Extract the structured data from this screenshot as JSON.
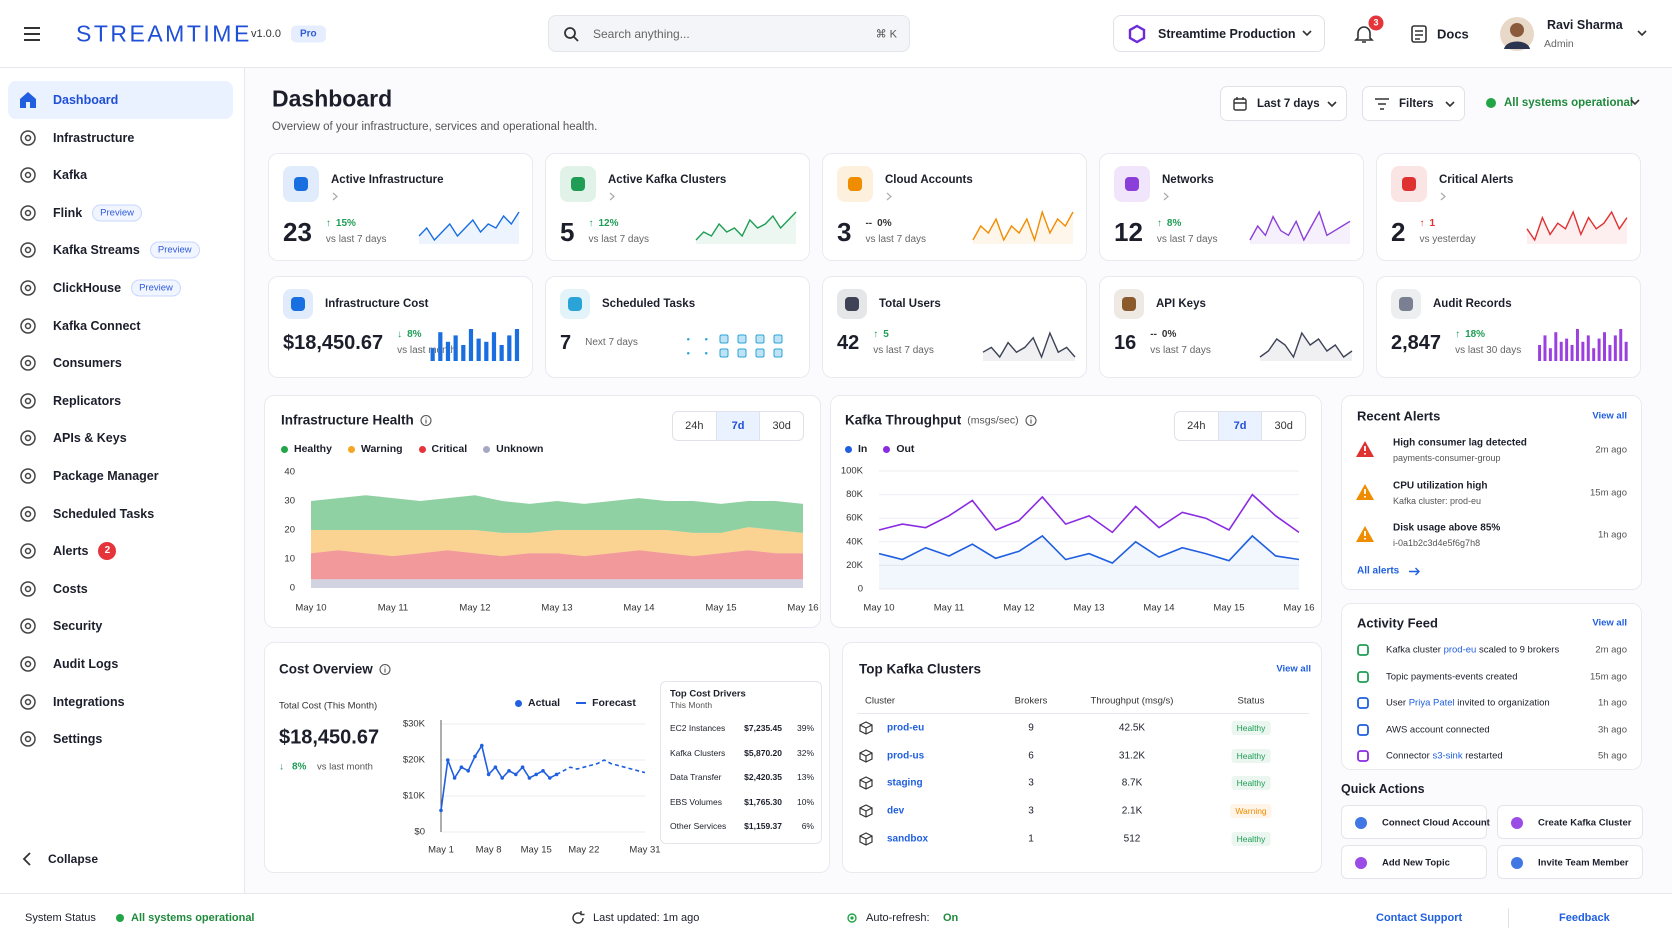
{
  "header": {
    "brand": "STREAMTIME",
    "version": "v1.0.0",
    "plan": "Pro",
    "search_placeholder": "Search anything...",
    "search_shortcut": "⌘ K",
    "organization": "Streamtime Production",
    "notifications": "3",
    "docs": "Docs",
    "user": {
      "name": "Ravi Sharma",
      "role": "Admin"
    }
  },
  "sidebar": {
    "items": [
      {
        "label": "Dashboard",
        "active": true
      },
      {
        "label": "Infrastructure"
      },
      {
        "label": "Kafka"
      },
      {
        "label": "Flink",
        "badge": "Preview"
      },
      {
        "label": "Kafka Streams",
        "badge": "Preview"
      },
      {
        "label": "ClickHouse",
        "badge": "Preview"
      },
      {
        "label": "Kafka Connect"
      },
      {
        "label": "Consumers"
      },
      {
        "label": "Replicators"
      },
      {
        "label": "APIs & Keys"
      },
      {
        "label": "Package Manager"
      },
      {
        "label": "Scheduled Tasks"
      },
      {
        "label": "Alerts",
        "count": "2"
      },
      {
        "label": "Costs"
      },
      {
        "label": "Security"
      },
      {
        "label": "Audit Logs"
      },
      {
        "label": "Integrations"
      },
      {
        "label": "Settings"
      }
    ],
    "collapse": "Collapse"
  },
  "page": {
    "title": "Dashboard",
    "subtitle": "Overview of your infrastructure, services and operational health.",
    "range": "Last 7 days",
    "filters": "Filters",
    "status": "All systems operational"
  },
  "kpis": [
    {
      "title": "Active Infrastructure",
      "value": "23",
      "arrow": "↑",
      "change": "15%",
      "period": "vs last 7 days",
      "color": "#1a6fe0",
      "trend_color": "#1f9d55",
      "spark_type": "line",
      "spark_color": "#1a6fe0",
      "spark": [
        4,
        6,
        3,
        5,
        7,
        4,
        6,
        8,
        5,
        7,
        6,
        9,
        7,
        10
      ]
    },
    {
      "title": "Active Kafka Clusters",
      "value": "5",
      "arrow": "↑",
      "change": "12%",
      "period": "vs last 7 days",
      "color": "#1f9d55",
      "trend_color": "#1f9d55",
      "spark_type": "line",
      "spark_color": "#1f9d55",
      "spark": [
        3,
        5,
        4,
        7,
        5,
        6,
        4,
        8,
        6,
        7,
        9,
        6,
        8,
        10
      ]
    },
    {
      "title": "Cloud Accounts",
      "value": "3",
      "arrow": "--",
      "change": "0%",
      "period": "vs last 7 days",
      "color": "#f08c00",
      "trend_color": "#333333",
      "spark_type": "line",
      "spark_color": "#f08c00",
      "spark": [
        5,
        7,
        6,
        8,
        5,
        7,
        6,
        8,
        5,
        9,
        6,
        8,
        7,
        9
      ]
    },
    {
      "title": "Networks",
      "value": "12",
      "arrow": "↑",
      "change": "8%",
      "period": "vs last 7 days",
      "color": "#8b3fd9",
      "trend_color": "#1f9d55",
      "spark_type": "line",
      "spark_color": "#8b3fd9",
      "spark": [
        4,
        7,
        5,
        9,
        6,
        5,
        8,
        4,
        7,
        10,
        5,
        6,
        7,
        8
      ]
    },
    {
      "title": "Critical Alerts",
      "value": "2",
      "arrow": "↑",
      "change": "1",
      "period": "vs yesterday",
      "color": "#e03131",
      "trend_color": "#e03131",
      "spark_type": "line",
      "spark_color": "#e03131",
      "spark": [
        6,
        4,
        8,
        5,
        7,
        6,
        9,
        5,
        8,
        6,
        7,
        9,
        6,
        8
      ]
    },
    {
      "title": "Infrastructure Cost",
      "value": "$18,450.67",
      "arrow": "↓",
      "change": "8%",
      "period": "vs last month",
      "color": "#1a6fe0",
      "trend_color": "#1f9d55",
      "spark_type": "bar",
      "spark_color": "#1a6fe0",
      "spark": [
        4,
        9,
        6,
        8,
        5,
        10,
        7,
        6,
        9,
        5,
        8,
        10
      ]
    },
    {
      "title": "Scheduled Tasks",
      "value": "7",
      "period": "Next 7 days",
      "color": "#2aa4d8"
    },
    {
      "title": "Total Users",
      "value": "42",
      "arrow": "↑",
      "change": "5",
      "period": "vs last 7 days",
      "color": "#3d4256",
      "trend_color": "#1f9d55",
      "spark_type": "line",
      "spark_color": "#3d4256",
      "spark": [
        5,
        6,
        4,
        7,
        5,
        6,
        8,
        4,
        9,
        5,
        6,
        4
      ]
    },
    {
      "title": "API Keys",
      "value": "16",
      "arrow": "--",
      "change": "0%",
      "period": "vs last 7 days",
      "color": "#8a5a2b",
      "trend_color": "#333333",
      "spark_type": "line",
      "spark_color": "#3d4256",
      "spark": [
        4,
        5,
        7,
        6,
        4,
        8,
        6,
        7,
        5,
        6,
        4,
        5
      ]
    },
    {
      "title": "Audit Records",
      "value": "2,847",
      "arrow": "↑",
      "change": "18%",
      "period": "vs last 30 days",
      "color": "#7a7f92",
      "trend_color": "#1f9d55",
      "spark_type": "bar",
      "spark_color": "#9b3fe0",
      "spark": [
        5,
        8,
        4,
        9,
        6,
        7,
        5,
        10,
        6,
        8,
        4,
        7,
        9,
        5,
        8,
        10,
        6
      ]
    }
  ],
  "chart_data": [
    {
      "type": "area",
      "stacked": true,
      "title": "Infrastructure Health",
      "tabs": [
        "24h",
        "7d",
        "30d"
      ],
      "active_tab": 1,
      "categories": [
        "May 10",
        null,
        null,
        "May 11",
        null,
        null,
        "May 12",
        null,
        null,
        "May 13",
        null,
        null,
        "May 14",
        null,
        null,
        "May 15",
        null,
        null,
        "May 16"
      ],
      "series": [
        {
          "name": "Healthy",
          "color": "#22a447",
          "values": [
            10,
            11,
            12,
            11,
            10,
            11,
            12,
            11,
            10,
            10,
            9,
            10,
            11,
            10,
            11,
            10,
            9,
            10,
            10
          ]
        },
        {
          "name": "Warning",
          "color": "#f5a623",
          "values": [
            8,
            7,
            8,
            9,
            8,
            7,
            8,
            8,
            7,
            8,
            9,
            8,
            7,
            8,
            8,
            7,
            8,
            8,
            7
          ]
        },
        {
          "name": "Critical",
          "color": "#e5343a",
          "values": [
            9,
            10,
            9,
            8,
            9,
            10,
            9,
            8,
            9,
            9,
            8,
            9,
            10,
            9,
            8,
            9,
            10,
            9,
            9
          ]
        },
        {
          "name": "Unknown",
          "color": "#a5a8c4",
          "values": [
            3,
            3,
            3,
            3,
            3,
            3,
            3,
            3,
            3,
            3,
            3,
            3,
            3,
            3,
            3,
            3,
            3,
            3,
            3
          ]
        }
      ],
      "ylim": [
        0,
        40
      ],
      "yticks": [
        0,
        10,
        20,
        30,
        40
      ],
      "grid": false
    },
    {
      "type": "line",
      "title": "Kafka Throughput",
      "unit": "(msgs/sec)",
      "tabs": [
        "24h",
        "7d",
        "30d"
      ],
      "active_tab": 1,
      "categories": [
        "May 10",
        null,
        null,
        "May 11",
        null,
        null,
        "May 12",
        null,
        null,
        "May 13",
        null,
        null,
        "May 14",
        null,
        null,
        "May 15",
        null,
        null,
        "May 16"
      ],
      "series": [
        {
          "name": "In",
          "color": "#1f5fe0",
          "values": [
            30000,
            25000,
            35000,
            28000,
            38000,
            26000,
            32000,
            45000,
            25000,
            30000,
            22000,
            40000,
            27000,
            35000,
            30000,
            24000,
            45000,
            28000,
            25000
          ]
        },
        {
          "name": "Out",
          "color": "#8a2be2",
          "values": [
            50000,
            55000,
            52000,
            62000,
            75000,
            50000,
            58000,
            78000,
            55000,
            62000,
            48000,
            70000,
            52000,
            65000,
            60000,
            50000,
            80000,
            62000,
            48000
          ]
        }
      ],
      "ylim": [
        0,
        100000
      ],
      "yticks": [
        0,
        {
          "value": 20000,
          "label": "20K"
        },
        {
          "value": 40000,
          "label": "40K"
        },
        {
          "value": 60000,
          "label": "60K"
        },
        {
          "value": 80000,
          "label": "80K"
        },
        {
          "value": 100000,
          "label": "100K"
        }
      ],
      "grid": true
    },
    {
      "type": "line",
      "title": "Cost Overview",
      "total_label": "Total Cost (This Month)",
      "total": "$18,450.67",
      "arrow": "↓",
      "change": "8%",
      "period": "vs last month",
      "categories": [
        "May 1",
        null,
        null,
        null,
        null,
        null,
        null,
        "May 8",
        null,
        null,
        null,
        null,
        null,
        null,
        "May 15",
        null,
        null,
        null,
        null,
        null,
        null,
        "May 22",
        null,
        null,
        null,
        null,
        null,
        null,
        null,
        null,
        "May 31"
      ],
      "series": [
        {
          "name": "Actual",
          "color": "#1f5fe0",
          "dash": false,
          "markers": true,
          "values": [
            6000,
            20000,
            15000,
            18000,
            17000,
            21000,
            24000,
            16000,
            18000,
            15000,
            17000,
            16000,
            18000,
            15000,
            16000,
            17000,
            15000,
            16000,
            null,
            null,
            null,
            null,
            null,
            null,
            null,
            null,
            null,
            null,
            null,
            null,
            null
          ]
        },
        {
          "name": "Forecast",
          "color": "#1f5fe0",
          "dash": true,
          "markers": false,
          "values": [
            null,
            null,
            null,
            null,
            null,
            null,
            null,
            null,
            null,
            null,
            null,
            null,
            null,
            null,
            null,
            null,
            null,
            16000,
            17000,
            18000,
            17500,
            18000,
            18500,
            19000,
            20000,
            19000,
            18500,
            18000,
            17500,
            17000,
            16500
          ]
        }
      ],
      "ylim": [
        0,
        30000
      ],
      "yticks": [
        {
          "value": 0,
          "label": "$0"
        },
        {
          "value": 10000,
          "label": "$10K"
        },
        {
          "value": 20000,
          "label": "$20K"
        },
        {
          "value": 30000,
          "label": "$30K"
        }
      ],
      "grid": true,
      "drivers": {
        "title": "Top Cost Drivers",
        "subtitle": "This Month",
        "rows": [
          [
            "EC2 Instances",
            "$7,235.45",
            "39%"
          ],
          [
            "Kafka Clusters",
            "$5,870.20",
            "32%"
          ],
          [
            "Data Transfer",
            "$2,420.35",
            "13%"
          ],
          [
            "EBS Volumes",
            "$1,765.30",
            "10%"
          ],
          [
            "Other Services",
            "$1,159.37",
            "6%"
          ]
        ]
      }
    }
  ],
  "top_clusters": {
    "title": "Top Kafka Clusters",
    "view_all": "View all",
    "columns": [
      "Cluster",
      "Brokers",
      "Throughput (msg/s)",
      "Status"
    ],
    "rows": [
      {
        "cluster": "prod-eu",
        "brokers": "9",
        "throughput": "42.5K",
        "status": "Healthy",
        "status_color": "#1f9d55"
      },
      {
        "cluster": "prod-us",
        "brokers": "6",
        "throughput": "31.2K",
        "status": "Healthy",
        "status_color": "#1f9d55"
      },
      {
        "cluster": "staging",
        "brokers": "3",
        "throughput": "8.7K",
        "status": "Healthy",
        "status_color": "#1f9d55"
      },
      {
        "cluster": "dev",
        "brokers": "3",
        "throughput": "2.1K",
        "status": "Warning",
        "status_color": "#f08c00"
      },
      {
        "cluster": "sandbox",
        "brokers": "1",
        "throughput": "512",
        "status": "Healthy",
        "status_color": "#1f9d55"
      }
    ]
  },
  "recent_alerts": {
    "title": "Recent Alerts",
    "view_all": "View all",
    "all_alerts": "All alerts",
    "items": [
      {
        "title": "High consumer lag detected",
        "detail": "payments-consumer-group",
        "time": "2m ago",
        "color": "#e03131"
      },
      {
        "title": "CPU utilization high",
        "detail": "Kafka cluster: prod-eu",
        "time": "15m ago",
        "color": "#f08c00"
      },
      {
        "title": "Disk usage above 85%",
        "detail": "i-0a1b2c3d4e5f6g7h8",
        "time": "1h ago",
        "color": "#f08c00"
      }
    ]
  },
  "activity_feed": {
    "title": "Activity Feed",
    "view_all": "View all",
    "items": [
      {
        "parts": [
          "Kafka cluster ",
          "prod-eu",
          " scaled to 9 brokers"
        ],
        "time": "2m ago",
        "color": "#1f9d55"
      },
      {
        "parts": [
          "Topic payments-events created"
        ],
        "time": "15m ago",
        "color": "#1f9d55"
      },
      {
        "parts": [
          "User ",
          "Priya Patel",
          " invited to organization"
        ],
        "time": "1h ago",
        "color": "#1f5fe0"
      },
      {
        "parts": [
          "AWS account connected"
        ],
        "time": "3h ago",
        "color": "#1f5fe0"
      },
      {
        "parts": [
          "Connector ",
          "s3-sink",
          " restarted"
        ],
        "time": "5h ago",
        "color": "#8a2be2"
      }
    ]
  },
  "quick_actions": {
    "title": "Quick Actions",
    "items": [
      {
        "label": "Connect Cloud Account",
        "color": "#1f5fe0"
      },
      {
        "label": "Create Kafka Cluster",
        "color": "#8a2be2"
      },
      {
        "label": "Add New Topic",
        "color": "#8a2be2"
      },
      {
        "label": "Invite Team Member",
        "color": "#1f5fe0"
      }
    ]
  },
  "footer": {
    "status_label": "System Status",
    "status": "All systems operational",
    "updated": "Last updated: 1m ago",
    "auto_refresh": "Auto-refresh:",
    "auto_refresh_state": "On",
    "contact": "Contact Support",
    "feedback": "Feedback"
  }
}
